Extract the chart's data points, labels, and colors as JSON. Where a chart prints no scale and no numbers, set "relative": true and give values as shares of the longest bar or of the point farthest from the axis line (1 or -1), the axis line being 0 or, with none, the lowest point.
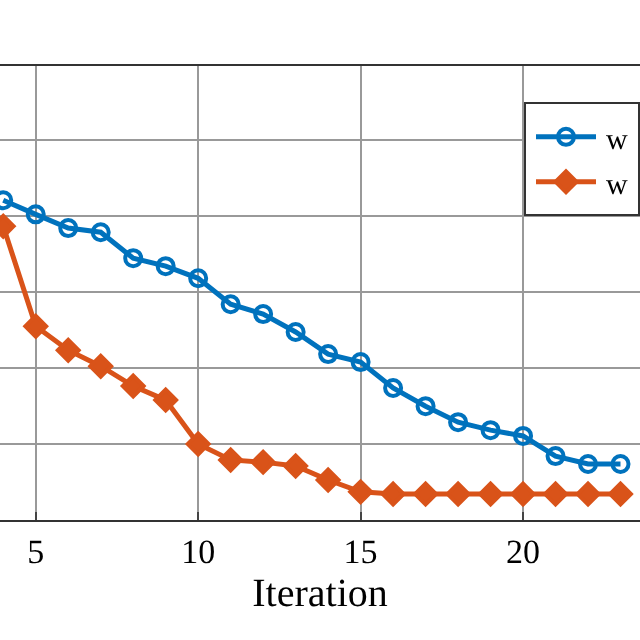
{
  "chart_data": {
    "type": "line",
    "xlabel": "Iteration",
    "relative": true,
    "x": [
      4,
      5,
      6,
      7,
      8,
      9,
      10,
      11,
      12,
      13,
      14,
      15,
      16,
      17,
      18,
      19,
      20,
      21,
      22,
      23
    ],
    "xlim": [
      3.9,
      23.6
    ],
    "xticks": [
      5,
      10,
      15,
      20
    ],
    "series": [
      {
        "name": "w",
        "color": "#0072bd",
        "marker": "circle",
        "values": [
          1.0,
          0.956,
          0.913,
          0.9,
          0.819,
          0.794,
          0.756,
          0.675,
          0.644,
          0.588,
          0.519,
          0.494,
          0.413,
          0.356,
          0.306,
          0.281,
          0.263,
          0.2,
          0.175,
          0.175
        ]
      },
      {
        "name": "w",
        "color": "#d95319",
        "marker": "diamond",
        "values": [
          0.919,
          0.606,
          0.531,
          0.481,
          0.419,
          0.375,
          0.238,
          0.188,
          0.181,
          0.169,
          0.125,
          0.088,
          0.081,
          0.081,
          0.081,
          0.081,
          0.081,
          0.081,
          0.081,
          0.081
        ]
      }
    ],
    "grid": true,
    "legend": "top right"
  }
}
